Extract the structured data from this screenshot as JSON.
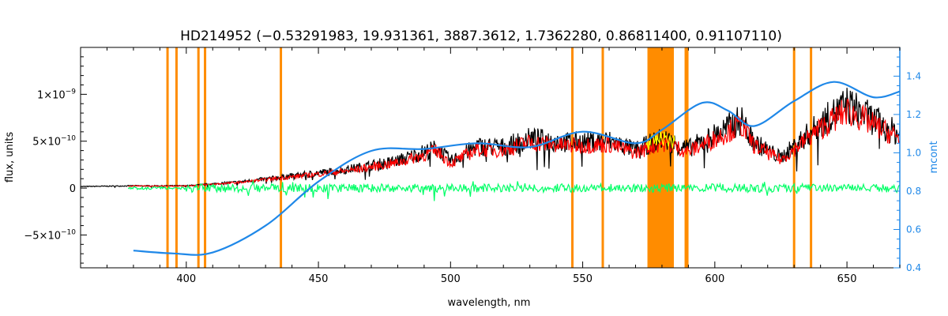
{
  "chart_data": {
    "type": "line",
    "title": "HD214952    (−0.53291983, 19.931361, 3887.3612, 1.7362280, 0.86811400, 0.91107110)",
    "xlabel": "wavelength, nm",
    "ylabel": "flux, units",
    "y2label": "mcont",
    "xlim": [
      360,
      670
    ],
    "ylim": [
      -8.5e-10,
      1.5e-09
    ],
    "y2lim": [
      0.4,
      1.55
    ],
    "grid": false,
    "x_ticks": [
      400,
      450,
      500,
      550,
      600,
      650
    ],
    "y_ticks": [
      {
        "value": -5e-10,
        "mant": "−5×10",
        "exp": "−10"
      },
      {
        "value": 0,
        "mant": "0",
        "exp": ""
      },
      {
        "value": 5e-10,
        "mant": "5×10",
        "exp": "−10"
      },
      {
        "value": 1e-09,
        "mant": "1×10",
        "exp": "−9"
      }
    ],
    "y2_ticks": [
      "0.4",
      "0.6",
      "0.8",
      "1.0",
      "1.2",
      "1.4"
    ],
    "masked_lines_nm": [
      392.9,
      396.3,
      404.6,
      407.1,
      435.8,
      546.1,
      557.6,
      589.0,
      589.6,
      630.0,
      636.4
    ],
    "masked_band_nm": [
      574.5,
      584.5
    ],
    "observed_flux_envelope": [
      [
        360,
        2e-11
      ],
      [
        380,
        3e-11
      ],
      [
        400,
        3e-11
      ],
      [
        420,
        8e-11
      ],
      [
        440,
        1.6e-10
      ],
      [
        460,
        2.4e-10
      ],
      [
        480,
        3.6e-10
      ],
      [
        495,
        5.3e-10
      ],
      [
        500,
        3.5e-10
      ],
      [
        510,
        5.5e-10
      ],
      [
        520,
        5.4e-10
      ],
      [
        530,
        6.5e-10
      ],
      [
        545,
        6e-10
      ],
      [
        560,
        6.2e-10
      ],
      [
        570,
        5e-10
      ],
      [
        580,
        6.5e-10
      ],
      [
        590,
        5.2e-10
      ],
      [
        600,
        7e-10
      ],
      [
        610,
        9e-10
      ],
      [
        615,
        6e-10
      ],
      [
        625,
        4e-10
      ],
      [
        640,
        8.5e-10
      ],
      [
        650,
        1.1e-09
      ],
      [
        660,
        9e-10
      ],
      [
        670,
        7e-10
      ]
    ],
    "continuum_mcont": [
      [
        380,
        0.49
      ],
      [
        395,
        0.475
      ],
      [
        410,
        0.48
      ],
      [
        430,
        0.62
      ],
      [
        450,
        0.85
      ],
      [
        470,
        1.01
      ],
      [
        490,
        1.02
      ],
      [
        510,
        1.05
      ],
      [
        530,
        1.03
      ],
      [
        550,
        1.11
      ],
      [
        570,
        1.05
      ],
      [
        580,
        1.12
      ],
      [
        595,
        1.26
      ],
      [
        605,
        1.22
      ],
      [
        615,
        1.14
      ],
      [
        630,
        1.27
      ],
      [
        645,
        1.37
      ],
      [
        660,
        1.29
      ],
      [
        670,
        1.32
      ]
    ],
    "series": [
      {
        "color": "#000000"
      },
      {
        "color": "#ff0000"
      },
      {
        "color": "#ffff00"
      },
      {
        "color": "#00ff66"
      },
      {
        "color": "#1f88e8"
      }
    ],
    "colors": {
      "mask": "#ff8c00",
      "right_axis": "#1f88e8",
      "axis": "#000000"
    }
  }
}
